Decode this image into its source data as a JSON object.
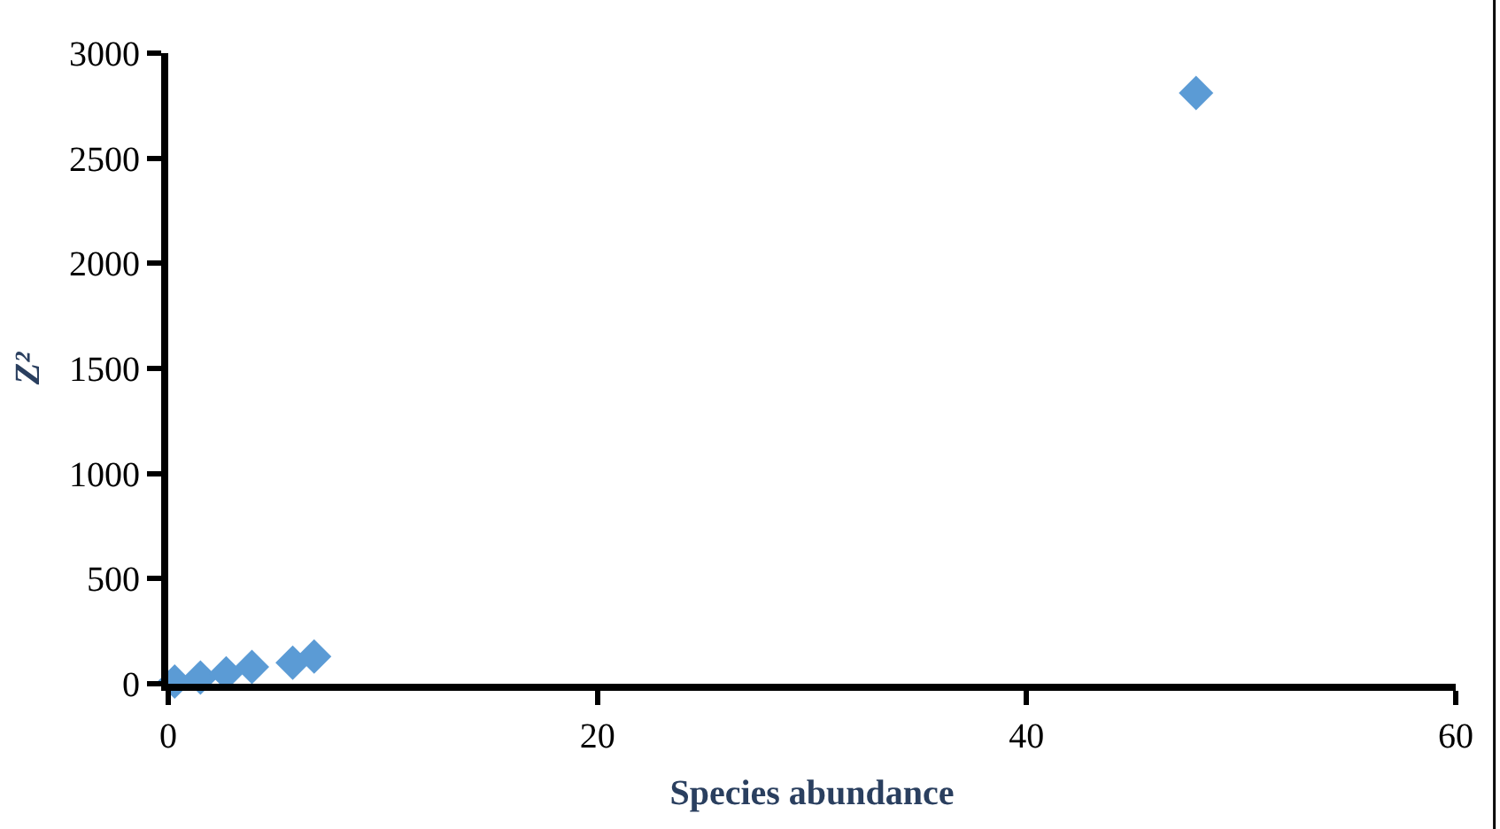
{
  "chart_data": {
    "type": "scatter",
    "xlabel": "Species abundance",
    "ylabel": "Z²",
    "x": [
      0.3,
      1.5,
      2.7,
      3.9,
      5.8,
      6.8,
      47.9
    ],
    "series": [
      {
        "color": "#5b9bd5",
        "values": [
          10,
          30,
          50,
          80,
          100,
          130,
          2810
        ]
      }
    ],
    "xlim": [
      0,
      60
    ],
    "xticks": [
      0,
      20,
      40,
      60
    ],
    "ylim": [
      0,
      3000
    ],
    "yticks": [
      0,
      500,
      1000,
      1500,
      2000,
      2500,
      3000
    ],
    "marker": "diamond"
  }
}
